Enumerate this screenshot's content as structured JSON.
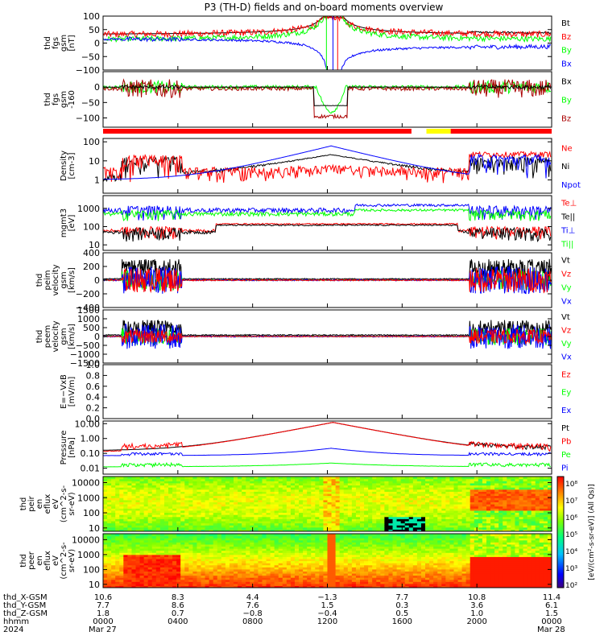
{
  "title": "P3 (TH-D) fields and on-board moments overview",
  "colors": {
    "black": "#000000",
    "red": "#ff0000",
    "green": "#00ff00",
    "blue": "#0000ff",
    "darkred": "#aa0000",
    "yellow": "#ffff00"
  },
  "chart_data": [
    {
      "type": "line",
      "id": "fgs",
      "ylabel": [
        "thd",
        "fgs",
        "gsm",
        "[nT]"
      ],
      "ylim": [
        -100,
        100
      ],
      "ticks": [
        "100",
        "50",
        "0",
        "−50",
        "−100"
      ],
      "tick_values": [
        100,
        50,
        0,
        -50,
        -100
      ],
      "legend": [
        {
          "label": "Bt",
          "color": "#000000"
        },
        {
          "label": "Bz",
          "color": "#ff0000"
        },
        {
          "label": "By",
          "color": "#00ff00"
        },
        {
          "label": "Bx",
          "color": "#0000ff"
        }
      ]
    },
    {
      "type": "line",
      "id": "fgs-dlim",
      "ylabel": [
        "thd",
        "fgs",
        "gsm",
        "-160"
      ],
      "ylim": [
        -130,
        50
      ],
      "ticks": [
        "0",
        "−50",
        "−100"
      ],
      "tick_values": [
        0,
        -50,
        -100
      ],
      "legend": [
        {
          "label": "Bx",
          "color": "#000000"
        },
        {
          "label": "By",
          "color": "#00ff00"
        },
        {
          "label": "Bz",
          "color": "#aa0000"
        }
      ]
    },
    {
      "type": "line",
      "id": "density",
      "ylabel": [
        "Density",
        "[cm-3]"
      ],
      "scale": "log",
      "ylim": [
        0.2,
        150
      ],
      "ticks": [
        "100",
        "10",
        "1"
      ],
      "tick_values": [
        100,
        10,
        1
      ],
      "legend": [
        {
          "label": "Ne",
          "color": "#ff0000"
        },
        {
          "label": "Ni",
          "color": "#000000"
        },
        {
          "label": "Npot",
          "color": "#0000ff"
        }
      ]
    },
    {
      "type": "line",
      "id": "temperature",
      "ylabel": [
        "mgmt3",
        "[eV]"
      ],
      "scale": "log",
      "ylim": [
        5,
        5000
      ],
      "ticks": [
        "1000",
        "100",
        "10"
      ],
      "tick_values": [
        1000,
        100,
        10
      ],
      "legend": [
        {
          "label": "Te⊥",
          "color": "#ff0000"
        },
        {
          "label": "Te||",
          "color": "#000000"
        },
        {
          "label": "Ti⊥",
          "color": "#0000ff"
        },
        {
          "label": "Ti||",
          "color": "#00ff00"
        }
      ]
    },
    {
      "type": "line",
      "id": "peim-velocity",
      "ylabel": [
        "thd",
        "peim",
        "velocity",
        "gsm",
        "[km/s]"
      ],
      "ylim": [
        -400,
        400
      ],
      "ticks": [
        "400",
        "200",
        "0",
        "−200",
        "−400"
      ],
      "tick_values": [
        400,
        200,
        0,
        -200,
        -400
      ],
      "legend": [
        {
          "label": "Vt",
          "color": "#000000"
        },
        {
          "label": "Vz",
          "color": "#ff0000"
        },
        {
          "label": "Vy",
          "color": "#00ff00"
        },
        {
          "label": "Vx",
          "color": "#0000ff"
        }
      ]
    },
    {
      "type": "line",
      "id": "peem-velocity",
      "ylabel": [
        "thd",
        "peem",
        "velocity",
        "gsm",
        "[km/s]"
      ],
      "ylim": [
        -1500,
        1500
      ],
      "ticks": [
        "1500",
        "1000",
        "500",
        "0",
        "−500",
        "−1000",
        "−1500"
      ],
      "tick_values": [
        1500,
        1000,
        500,
        0,
        -500,
        -1000,
        -1500
      ],
      "legend": [
        {
          "label": "Vt",
          "color": "#000000"
        },
        {
          "label": "Vz",
          "color": "#ff0000"
        },
        {
          "label": "Vy",
          "color": "#00ff00"
        },
        {
          "label": "Vx",
          "color": "#0000ff"
        }
      ]
    },
    {
      "type": "line",
      "id": "efield",
      "ylabel": [
        "E=−VxB",
        "[mV/m]"
      ],
      "ylim": [
        0,
        1
      ],
      "ticks": [
        "1.0",
        "0.8",
        "0.6",
        "0.4",
        "0.2",
        "0.0"
      ],
      "tick_values": [
        1.0,
        0.8,
        0.6,
        0.4,
        0.2,
        0.0
      ],
      "legend": [
        {
          "label": "Ez",
          "color": "#ff0000"
        },
        {
          "label": "Ey",
          "color": "#00ff00"
        },
        {
          "label": "Ex",
          "color": "#0000ff"
        }
      ]
    },
    {
      "type": "line",
      "id": "pressure",
      "ylabel": [
        "Pressure",
        "[nPa]"
      ],
      "scale": "log",
      "ylim": [
        0.004,
        15
      ],
      "ticks": [
        "10.00",
        "1.00",
        "0.10",
        "0.01"
      ],
      "tick_values": [
        10,
        1,
        0.1,
        0.01
      ],
      "legend": [
        {
          "label": "Pt",
          "color": "#000000"
        },
        {
          "label": "Pb",
          "color": "#ff0000"
        },
        {
          "label": "Pe",
          "color": "#00ff00"
        },
        {
          "label": "Pi",
          "color": "#0000ff"
        }
      ]
    },
    {
      "type": "heatmap",
      "id": "peir-eflux",
      "ylabel": [
        "thd",
        "peir",
        "en",
        "eflux",
        "eV",
        "(cm^2-s-",
        "sr-eV)"
      ],
      "scale": "log",
      "ylim": [
        6,
        25000
      ],
      "ticks": [
        "10000",
        "1000",
        "100",
        "10"
      ],
      "tick_values": [
        10000,
        1000,
        100,
        10
      ]
    },
    {
      "type": "heatmap",
      "id": "peer-eflux",
      "ylabel": [
        "thd",
        "peer",
        "en",
        "eflux",
        "eV",
        "(cm^2-s-",
        "sr-eV)"
      ],
      "scale": "log",
      "ylim": [
        6,
        25000
      ],
      "ticks": [
        "10000",
        "1000",
        "100",
        "10"
      ],
      "tick_values": [
        10000,
        1000,
        100,
        10
      ]
    }
  ],
  "colorbar": {
    "ticks": [
      "10⁸",
      "10⁷",
      "10⁶",
      "10⁵",
      "10⁴",
      "10³",
      "10²"
    ],
    "label": "[eV/(cm²-s-sr-eV)] (All Qs)]"
  },
  "xaxis": {
    "row_labels": [
      "thd_X-GSM",
      "thd_Y-GSM",
      "thd_Z-GSM",
      "hhmm",
      "2024"
    ],
    "columns": [
      [
        "10.6",
        "7.7",
        "1.8",
        "0000",
        "Mar 27"
      ],
      [
        "8.3",
        "8.6",
        "0.7",
        "0400",
        ""
      ],
      [
        "4.4",
        "7.6",
        "−0.8",
        "0800",
        ""
      ],
      [
        "−1.3",
        "1.5",
        "−0.4",
        "1200",
        ""
      ],
      [
        "7.7",
        "0.3",
        "0.5",
        "1600",
        ""
      ],
      [
        "10.8",
        "3.6",
        "1.0",
        "2000",
        ""
      ],
      [
        "11.4",
        "6.1",
        "1.5",
        "0000",
        "Mar 28"
      ]
    ]
  },
  "mode_bar": [
    {
      "from": 0,
      "to": 16.5,
      "color": "#ff0000"
    },
    {
      "from": 16.5,
      "to": 17.3,
      "color": "#ffffff"
    },
    {
      "from": 17.3,
      "to": 18.6,
      "color": "#ffff00"
    },
    {
      "from": 18.6,
      "to": 24,
      "color": "#ff0000"
    }
  ]
}
